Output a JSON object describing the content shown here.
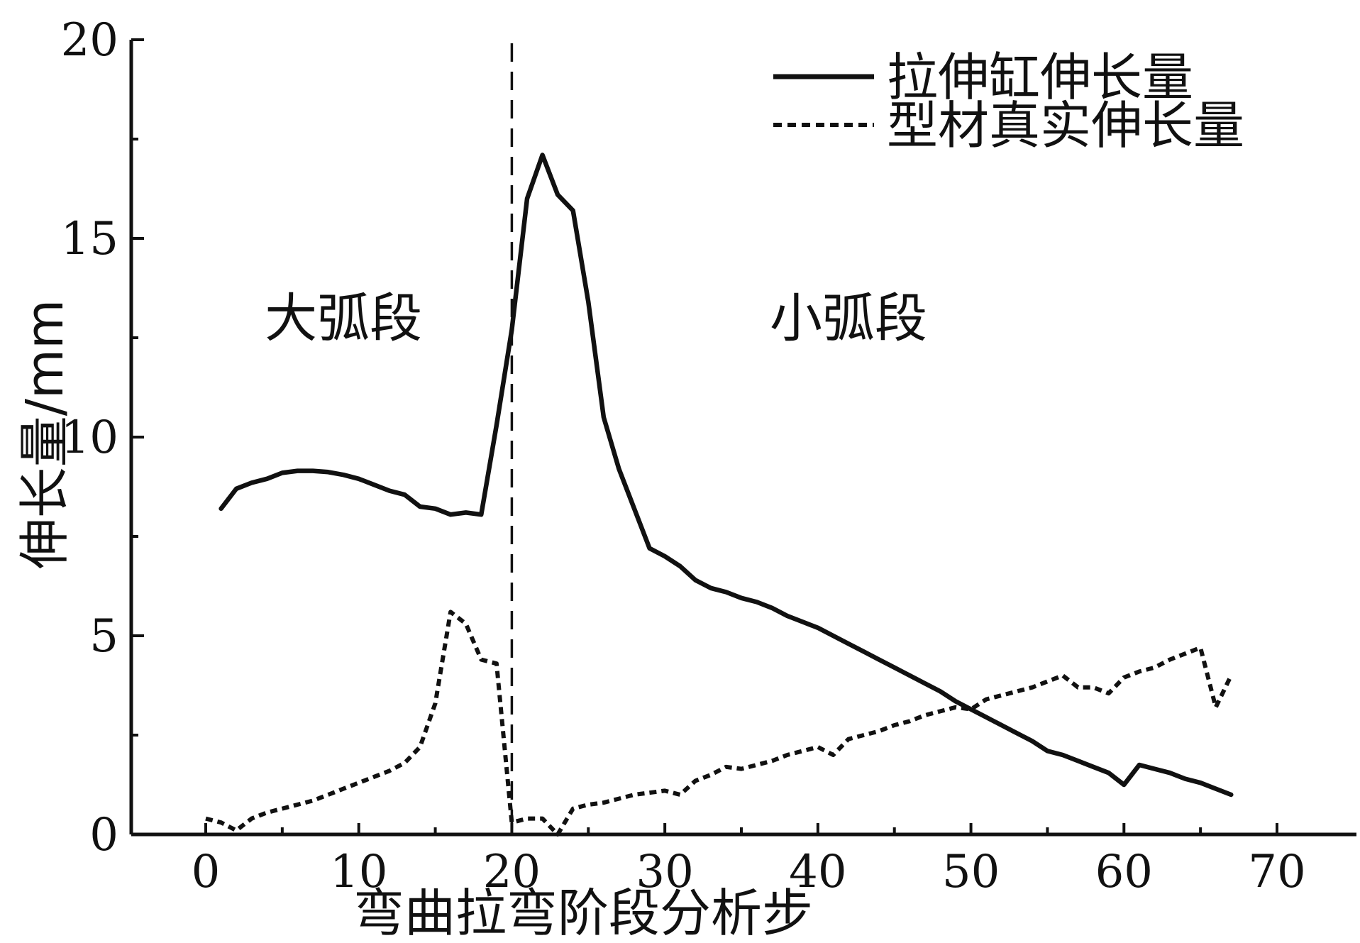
{
  "chart_data": {
    "type": "line",
    "xlabel": "弯曲拉弯阶段分析步",
    "ylabel": "伸长量/mm",
    "xlim": [
      -5,
      75
    ],
    "ylim": [
      0,
      20
    ],
    "xticks": [
      0,
      10,
      20,
      30,
      40,
      50,
      60,
      70
    ],
    "yticks": [
      0,
      5,
      10,
      15,
      20
    ],
    "grid": false,
    "legend_position": "top-right",
    "annotations": [
      {
        "text": "大弧段",
        "x": 9,
        "y": 13
      },
      {
        "text": "小弧段",
        "x": 42,
        "y": 13
      }
    ],
    "divider_x": 20,
    "series": [
      {
        "name": "拉伸缸伸长量",
        "style": "solid",
        "color": "#111111",
        "points": [
          [
            1,
            8.2
          ],
          [
            2,
            8.7
          ],
          [
            3,
            8.85
          ],
          [
            4,
            8.95
          ],
          [
            5,
            9.1
          ],
          [
            6,
            9.15
          ],
          [
            7,
            9.15
          ],
          [
            8,
            9.12
          ],
          [
            9,
            9.05
          ],
          [
            10,
            8.95
          ],
          [
            11,
            8.8
          ],
          [
            12,
            8.65
          ],
          [
            13,
            8.55
          ],
          [
            14,
            8.25
          ],
          [
            15,
            8.2
          ],
          [
            16,
            8.05
          ],
          [
            17,
            8.1
          ],
          [
            18,
            8.05
          ],
          [
            19,
            10.3
          ],
          [
            20,
            12.7
          ],
          [
            21,
            16.0
          ],
          [
            22,
            17.1
          ],
          [
            23,
            16.1
          ],
          [
            24,
            15.7
          ],
          [
            25,
            13.4
          ],
          [
            26,
            10.5
          ],
          [
            27,
            9.2
          ],
          [
            28,
            8.2
          ],
          [
            29,
            7.2
          ],
          [
            30,
            7.0
          ],
          [
            31,
            6.75
          ],
          [
            32,
            6.4
          ],
          [
            33,
            6.2
          ],
          [
            34,
            6.1
          ],
          [
            35,
            5.95
          ],
          [
            36,
            5.85
          ],
          [
            37,
            5.7
          ],
          [
            38,
            5.5
          ],
          [
            39,
            5.35
          ],
          [
            40,
            5.2
          ],
          [
            41,
            5.0
          ],
          [
            42,
            4.8
          ],
          [
            43,
            4.6
          ],
          [
            44,
            4.4
          ],
          [
            45,
            4.2
          ],
          [
            46,
            4.0
          ],
          [
            47,
            3.8
          ],
          [
            48,
            3.6
          ],
          [
            49,
            3.35
          ],
          [
            50,
            3.15
          ],
          [
            51,
            2.95
          ],
          [
            52,
            2.75
          ],
          [
            53,
            2.55
          ],
          [
            54,
            2.35
          ],
          [
            55,
            2.1
          ],
          [
            56,
            2.0
          ],
          [
            57,
            1.85
          ],
          [
            58,
            1.7
          ],
          [
            59,
            1.55
          ],
          [
            60,
            1.25
          ],
          [
            61,
            1.75
          ],
          [
            62,
            1.65
          ],
          [
            63,
            1.55
          ],
          [
            64,
            1.4
          ],
          [
            65,
            1.3
          ],
          [
            66,
            1.15
          ],
          [
            67,
            1.0
          ]
        ]
      },
      {
        "name": "型材真实伸长量",
        "style": "dashed",
        "color": "#111111",
        "points": [
          [
            0,
            0.4
          ],
          [
            1,
            0.3
          ],
          [
            2,
            0.1
          ],
          [
            3,
            0.4
          ],
          [
            4,
            0.55
          ],
          [
            5,
            0.65
          ],
          [
            6,
            0.75
          ],
          [
            7,
            0.85
          ],
          [
            8,
            1.0
          ],
          [
            9,
            1.15
          ],
          [
            10,
            1.3
          ],
          [
            11,
            1.45
          ],
          [
            12,
            1.6
          ],
          [
            13,
            1.8
          ],
          [
            14,
            2.2
          ],
          [
            15,
            3.3
          ],
          [
            16,
            5.6
          ],
          [
            17,
            5.3
          ],
          [
            18,
            4.4
          ],
          [
            19,
            4.3
          ],
          [
            20,
            0.3
          ],
          [
            21,
            0.4
          ],
          [
            22,
            0.4
          ],
          [
            23,
            0.0
          ],
          [
            24,
            0.65
          ],
          [
            25,
            0.75
          ],
          [
            26,
            0.8
          ],
          [
            27,
            0.9
          ],
          [
            28,
            1.0
          ],
          [
            29,
            1.05
          ],
          [
            30,
            1.1
          ],
          [
            31,
            1.0
          ],
          [
            32,
            1.35
          ],
          [
            33,
            1.5
          ],
          [
            34,
            1.7
          ],
          [
            35,
            1.65
          ],
          [
            36,
            1.75
          ],
          [
            37,
            1.85
          ],
          [
            38,
            2.0
          ],
          [
            39,
            2.1
          ],
          [
            40,
            2.2
          ],
          [
            41,
            2.0
          ],
          [
            42,
            2.4
          ],
          [
            43,
            2.5
          ],
          [
            44,
            2.6
          ],
          [
            45,
            2.75
          ],
          [
            46,
            2.85
          ],
          [
            47,
            3.0
          ],
          [
            48,
            3.1
          ],
          [
            49,
            3.2
          ],
          [
            50,
            3.15
          ],
          [
            51,
            3.4
          ],
          [
            52,
            3.5
          ],
          [
            53,
            3.6
          ],
          [
            54,
            3.7
          ],
          [
            55,
            3.85
          ],
          [
            56,
            4.0
          ],
          [
            57,
            3.7
          ],
          [
            58,
            3.7
          ],
          [
            59,
            3.55
          ],
          [
            60,
            3.95
          ],
          [
            61,
            4.1
          ],
          [
            62,
            4.2
          ],
          [
            63,
            4.4
          ],
          [
            64,
            4.55
          ],
          [
            65,
            4.7
          ],
          [
            66,
            3.2
          ],
          [
            67,
            4.0
          ]
        ]
      }
    ]
  }
}
